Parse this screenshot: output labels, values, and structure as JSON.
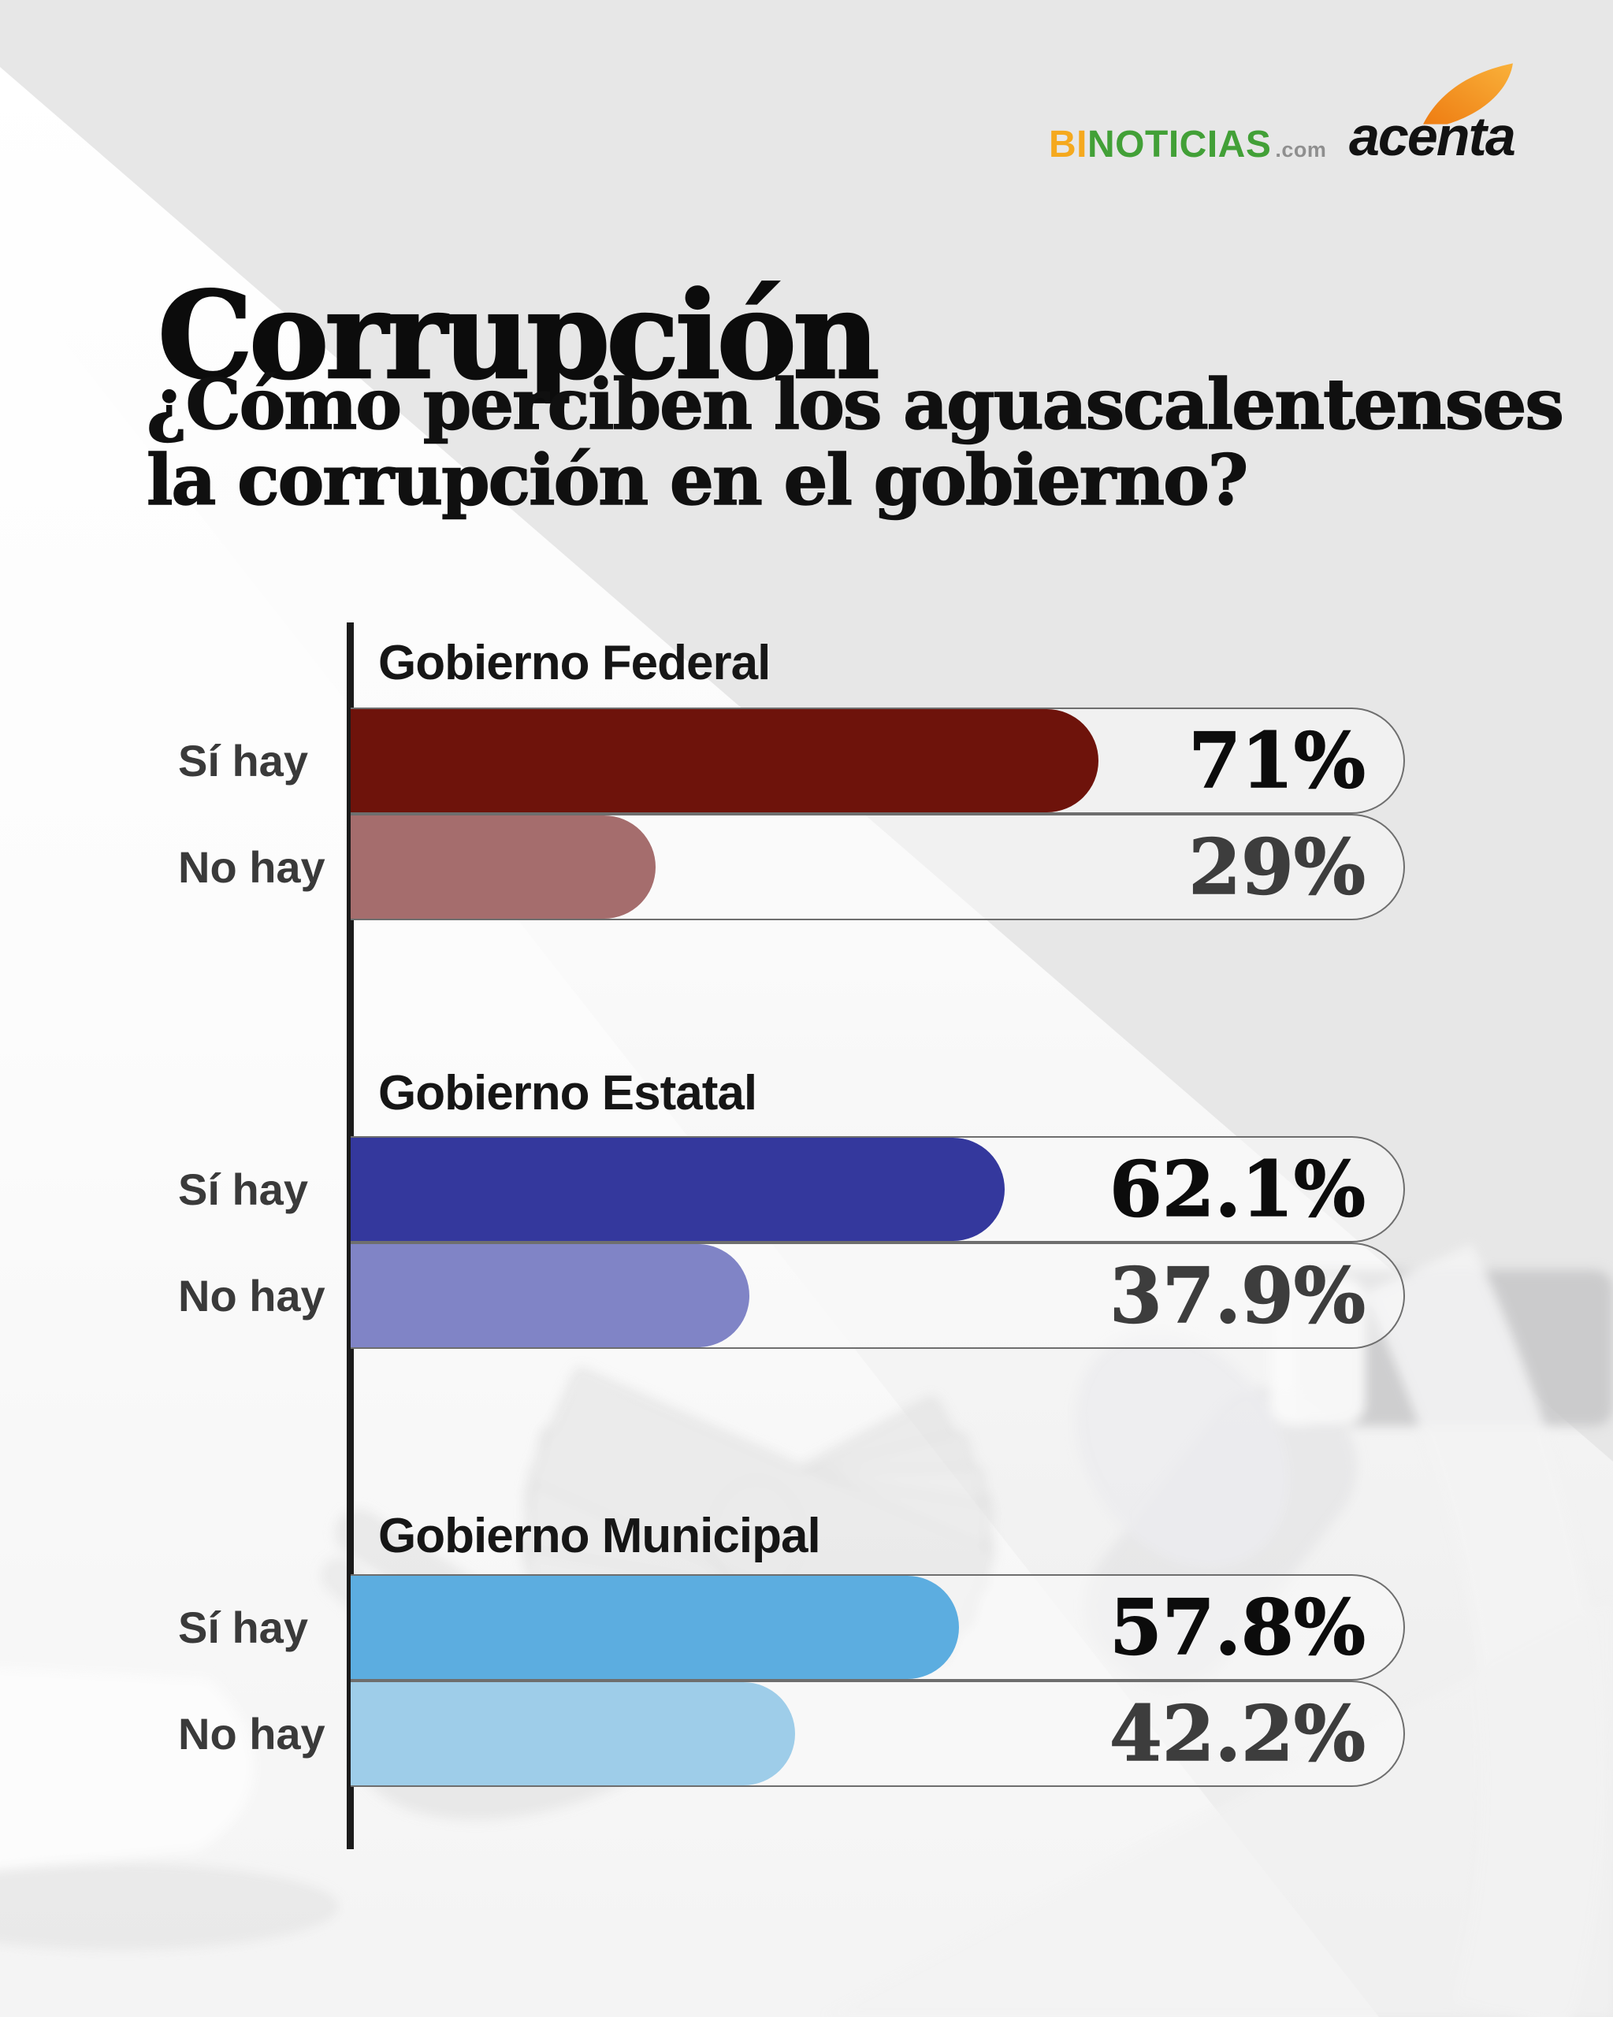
{
  "logos": {
    "binoticias": {
      "bi": "BI",
      "noticias": "NOTICIAS",
      "com": ".com"
    },
    "acenta": "acenta",
    "colors": {
      "bi": "#f5a91e",
      "noticias": "#42a037",
      "com": "#8f8f8f",
      "acenta": "#121212",
      "swoosh_dark": "#ee7c12",
      "swoosh_light": "#f9b13a"
    }
  },
  "header": {
    "title": "Corrupción",
    "subtitle_line1": "¿Cómo perciben los aguascalentenses",
    "subtitle_line2": "la corrupción en el gobierno?"
  },
  "chart_data": {
    "type": "bar",
    "orientation": "horizontal",
    "title": "Corrupción",
    "question": "¿Cómo perciben los aguascalentenses la corrupción en el gobierno?",
    "categories": [
      "Sí hay",
      "No hay"
    ],
    "unit": "%",
    "xlim": [
      0,
      100
    ],
    "axis_color": "#1b1b1b",
    "track": {
      "border_color": "#6e6e6e",
      "fill": "rgba(250,250,250,0.55)"
    },
    "value_text_colors": [
      "#0c0c0c",
      "#3d3d3d"
    ],
    "groups": [
      {
        "label": "Gobierno Federal",
        "values": [
          71,
          29
        ],
        "value_labels": [
          "71%",
          "29%"
        ],
        "bar_colors": [
          "#6e130b",
          "#a56d6d"
        ]
      },
      {
        "label": "Gobierno Estatal",
        "values": [
          62.1,
          37.9
        ],
        "value_labels": [
          "62.1%",
          "37.9%"
        ],
        "bar_colors": [
          "#34389d",
          "#8084c6"
        ]
      },
      {
        "label": "Gobierno Municipal",
        "values": [
          57.8,
          42.2
        ],
        "value_labels": [
          "57.8%",
          "42.2%"
        ],
        "bar_colors": [
          "#5cade0",
          "#9ecde9"
        ]
      }
    ]
  }
}
